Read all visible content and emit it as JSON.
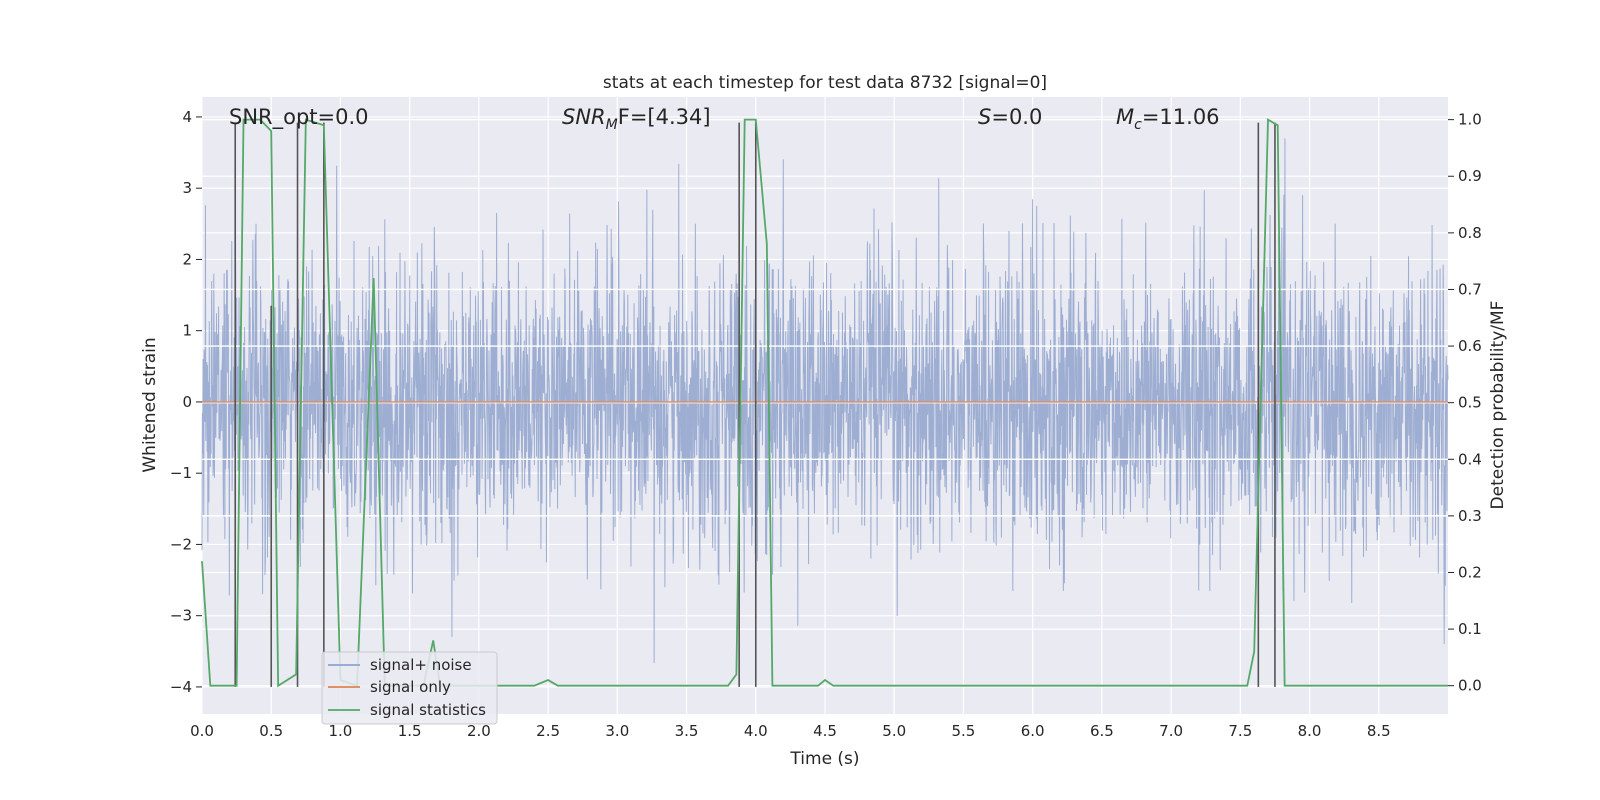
{
  "chart_data": {
    "type": "line",
    "title": "stats at each timestep for test data 8732 [signal=0]",
    "xlabel": "Time (s)",
    "ylabel_left": "Whitened strain",
    "ylabel_right": "Detection probability/MF",
    "xlim": [
      0,
      9
    ],
    "ylim_left": [
      -4.38,
      4.28
    ],
    "ylim_right": [
      -0.05,
      1.04
    ],
    "grid": true,
    "x_ticks": [
      "0.0",
      "0.5",
      "1.0",
      "1.5",
      "2.0",
      "2.5",
      "3.0",
      "3.5",
      "4.0",
      "4.5",
      "5.0",
      "5.5",
      "6.0",
      "6.5",
      "7.0",
      "7.5",
      "8.0",
      "8.5"
    ],
    "y_ticks_left": [
      "4",
      "3",
      "2",
      "1",
      "0",
      "−1",
      "−2",
      "−3",
      "−4"
    ],
    "y_ticks_right": [
      "1.0",
      "0.9",
      "0.8",
      "0.7",
      "0.6",
      "0.5",
      "0.4",
      "0.3",
      "0.2",
      "0.1",
      "0.0"
    ],
    "annotations": {
      "snr_opt": "SNR_opt=0.0",
      "snr_mf_base": "SNR",
      "snr_mf_sub": "M",
      "snr_mf_rest": "F=[4.34]",
      "s_italic": "S",
      "s_rest": "=0.0",
      "mc_italic": "M",
      "mc_sub": "c",
      "mc_rest": "=11.06"
    },
    "legend": {
      "placement": "lower-left",
      "entries": [
        {
          "label": "signal+ noise",
          "color": "#8fa3cc"
        },
        {
          "label": "signal only",
          "color": "#dd8452"
        },
        {
          "label": "signal statistics",
          "color": "#55a868"
        }
      ]
    },
    "series": [
      {
        "name": "signal+ noise",
        "axis": "left",
        "color": "#8fa3cc",
        "kind": "noise",
        "amplitude_std": 1.0,
        "ymin": -3.9,
        "ymax": 3.7
      },
      {
        "name": "signal only",
        "axis": "left",
        "color": "#dd8452",
        "x": [
          0,
          9
        ],
        "y": [
          0,
          0
        ]
      },
      {
        "name": "signal statistics",
        "axis": "right",
        "color": "#55a868",
        "x": [
          0,
          0.06,
          0.25,
          0.3,
          0.42,
          0.5,
          0.55,
          0.68,
          0.75,
          0.88,
          1.0,
          1.12,
          1.24,
          1.32,
          1.6,
          1.67,
          1.72,
          2.4,
          2.5,
          2.57,
          3.8,
          3.86,
          3.92,
          4.0,
          4.08,
          4.12,
          4.45,
          4.5,
          4.56,
          7.55,
          7.6,
          7.7,
          7.77,
          7.82,
          9.0
        ],
        "y": [
          0.22,
          0.0,
          0.0,
          1.0,
          1.0,
          0.98,
          0.0,
          0.02,
          1.0,
          0.99,
          0.01,
          0.0,
          0.72,
          0.0,
          0.0,
          0.08,
          0.0,
          0.0,
          0.01,
          0.0,
          0.0,
          0.02,
          1.0,
          1.0,
          0.78,
          0.0,
          0.0,
          0.01,
          0.0,
          0.0,
          0.06,
          1.0,
          0.99,
          0.0,
          0.0
        ]
      }
    ],
    "vertical_markers": [
      {
        "x": 0.24,
        "y0": -4.0,
        "y1": 3.92
      },
      {
        "x": 0.5,
        "y0": -4.0,
        "y1": 1.35
      },
      {
        "x": 0.69,
        "y0": -4.0,
        "y1": 3.92
      },
      {
        "x": 0.88,
        "y0": -4.0,
        "y1": 3.92
      },
      {
        "x": 3.88,
        "y0": -4.0,
        "y1": 3.92
      },
      {
        "x": 4.0,
        "y0": -4.0,
        "y1": 3.92
      },
      {
        "x": 7.63,
        "y0": -4.0,
        "y1": 3.92
      },
      {
        "x": 7.75,
        "y0": -4.0,
        "y1": 3.92
      }
    ],
    "horizontal_markers": [
      {
        "axis": "right",
        "y": 0.7
      },
      {
        "axis": "right",
        "y": 0.6
      },
      {
        "axis": "right",
        "y": 0.4
      },
      {
        "axis": "right",
        "y": 0.3
      }
    ]
  }
}
